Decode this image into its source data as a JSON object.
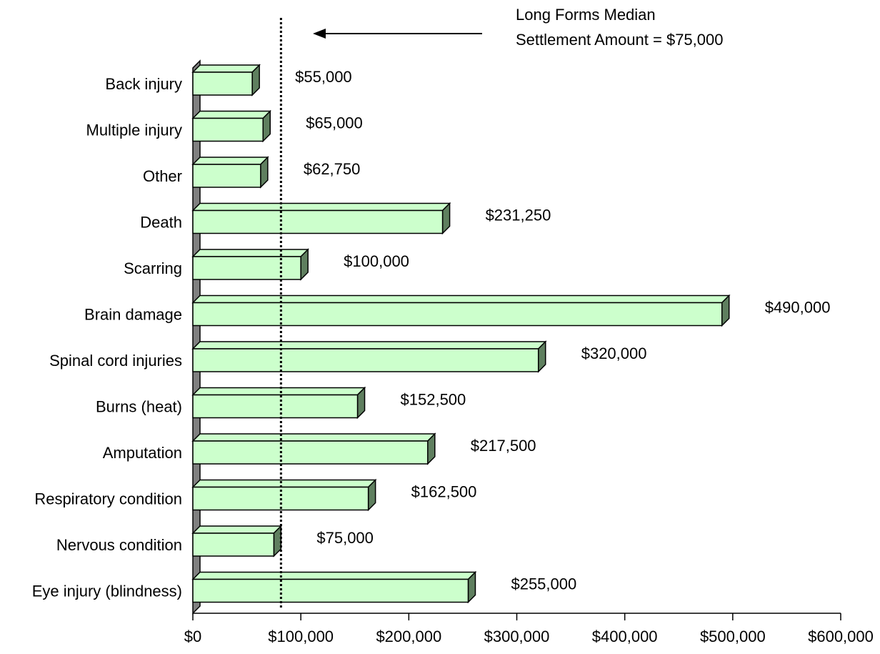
{
  "chart_data": {
    "type": "bar3d_horizontal",
    "annotation": [
      "Long Forms Median",
      "Settlement Amount = $75,000"
    ],
    "median_line": 75000,
    "categories": [
      "Back injury",
      "Multiple injury",
      "Other",
      "Death",
      "Scarring",
      "Brain damage",
      "Spinal cord injuries",
      "Burns (heat)",
      "Amputation",
      "Respiratory condition",
      "Nervous condition",
      "Eye injury (blindness)"
    ],
    "values": [
      55000,
      65000,
      62750,
      231250,
      100000,
      490000,
      320000,
      152500,
      217500,
      162500,
      75000,
      255000
    ],
    "value_labels": [
      "$55,000",
      "$65,000",
      "$62,750",
      "$231,250",
      "$100,000",
      "$490,000",
      "$320,000",
      "$152,500",
      "$217,500",
      "$162,500",
      "$75,000",
      "$255,000"
    ],
    "color": "#ccffcc",
    "side_color": "#5f7f5f",
    "xlim": [
      0,
      600000
    ],
    "xticks": [
      {
        "value": 0,
        "label": "$0"
      },
      {
        "value": 100000,
        "label": "$100,000"
      },
      {
        "value": 200000,
        "label": "$200,000"
      },
      {
        "value": 300000,
        "label": "$300,000"
      },
      {
        "value": 400000,
        "label": "$400,000"
      },
      {
        "value": 500000,
        "label": "$500,000"
      },
      {
        "value": 600000,
        "label": "$600,000"
      }
    ]
  }
}
